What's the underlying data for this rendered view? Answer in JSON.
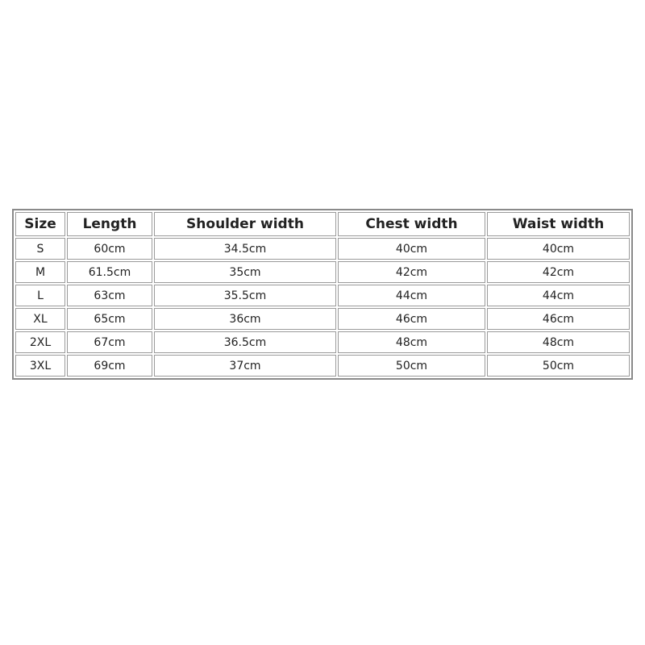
{
  "table": {
    "headers": [
      "Size",
      "Length",
      "Shoulder width",
      "Chest width",
      "Waist width"
    ],
    "rows": [
      [
        "S",
        "60cm",
        "34.5cm",
        "40cm",
        "40cm"
      ],
      [
        "M",
        "61.5cm",
        "35cm",
        "42cm",
        "42cm"
      ],
      [
        "L",
        "63cm",
        "35.5cm",
        "44cm",
        "44cm"
      ],
      [
        "XL",
        "65cm",
        "36cm",
        "46cm",
        "46cm"
      ],
      [
        "2XL",
        "67cm",
        "36.5cm",
        "48cm",
        "48cm"
      ],
      [
        "3XL",
        "69cm",
        "37cm",
        "50cm",
        "50cm"
      ]
    ]
  }
}
